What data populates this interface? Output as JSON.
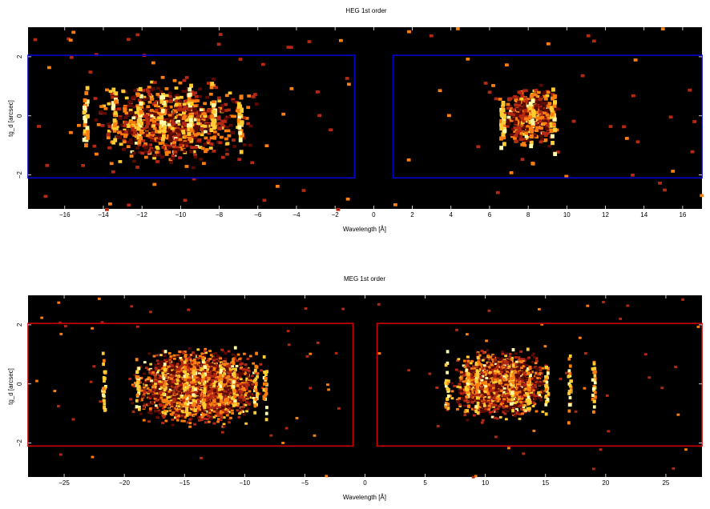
{
  "chart_data": [
    {
      "type": "heatmap",
      "title": "HEG 1st order",
      "xlabel": "Wavelength [Å]",
      "ylabel": "tg_d [arcsec]",
      "xlim": [
        -17.9,
        17.0
      ],
      "ylim": [
        -3.15,
        3.0
      ],
      "xticks": [
        -16,
        -14,
        -12,
        -10,
        -8,
        -6,
        -4,
        -2,
        0,
        2,
        4,
        6,
        8,
        10,
        12,
        14,
        16
      ],
      "xtick_labels": [
        "−16",
        "−14",
        "−12",
        "−10",
        "−8",
        "−6",
        "−4",
        "−2",
        "0",
        "2",
        "4",
        "6",
        "8",
        "10",
        "12",
        "14",
        "16"
      ],
      "yticks": [
        -2,
        0,
        2
      ],
      "ytick_labels": [
        "−2",
        "0",
        "2"
      ],
      "colormap": [
        "#000000",
        "#5a0a00",
        "#b42814",
        "#ff7f0e",
        "#ffcc33",
        "#ffffaa"
      ],
      "region_color": "#0000cc",
      "regions": [
        {
          "x": [
            -17.9,
            -1.0
          ],
          "y": [
            -2.1,
            2.05
          ]
        },
        {
          "x": [
            1.0,
            17.0
          ],
          "y": [
            -2.1,
            2.05
          ]
        }
      ],
      "clusters": [
        {
          "x": [
            -17.5,
            -1.5
          ],
          "y": [
            -1.9,
            1.6
          ],
          "center": -10.5,
          "spread": 5.0,
          "count": 900
        },
        {
          "x": [
            4.0,
            10.5
          ],
          "y": [
            -1.2,
            1.3
          ],
          "center": 8.0,
          "spread": 1.6,
          "count": 480
        }
      ],
      "lines": [
        -15.0,
        -13.5,
        -12.2,
        -11.0,
        -9.6,
        -8.4,
        -7.0,
        6.6,
        8.1,
        9.2
      ],
      "bin_size": [
        0.2,
        0.1
      ]
    },
    {
      "type": "heatmap",
      "title": "MEG 1st order",
      "xlabel": "Wavelength [Å]",
      "ylabel": "tg_d [arcsec]",
      "xlim": [
        -28.0,
        28.0
      ],
      "ylim": [
        -3.15,
        3.0
      ],
      "xticks": [
        -25,
        -20,
        -15,
        -10,
        -5,
        0,
        5,
        10,
        15,
        20,
        25
      ],
      "xtick_labels": [
        "−25",
        "−20",
        "−15",
        "−10",
        "−5",
        "0",
        "5",
        "10",
        "15",
        "20",
        "25"
      ],
      "yticks": [
        -2,
        0,
        2
      ],
      "ytick_labels": [
        "−2",
        "0",
        "2"
      ],
      "colormap": [
        "#000000",
        "#5a0a00",
        "#b42814",
        "#ff7f0e",
        "#ffcc33",
        "#ffffaa"
      ],
      "region_color": "#cc0000",
      "regions": [
        {
          "x": [
            -28.0,
            -1.0
          ],
          "y": [
            -2.1,
            2.05
          ]
        },
        {
          "x": [
            1.0,
            28.0
          ],
          "y": [
            -2.1,
            2.05
          ]
        }
      ],
      "clusters": [
        {
          "x": [
            -23.0,
            -4.0
          ],
          "y": [
            -1.5,
            1.4
          ],
          "center": -14.0,
          "spread": 6.0,
          "count": 3200
        },
        {
          "x": [
            3.0,
            20.0
          ],
          "y": [
            -1.3,
            1.3
          ],
          "center": 11.0,
          "spread": 4.5,
          "count": 2200
        }
      ],
      "lines": [
        -21.8,
        -19.0,
        -16.8,
        -15.0,
        -14.3,
        -13.5,
        -12.1,
        -11.0,
        -9.2,
        -8.4,
        6.7,
        8.4,
        9.2,
        12.1,
        13.5,
        15.0,
        16.9,
        18.9
      ],
      "bin_size": [
        0.25,
        0.08
      ]
    }
  ]
}
